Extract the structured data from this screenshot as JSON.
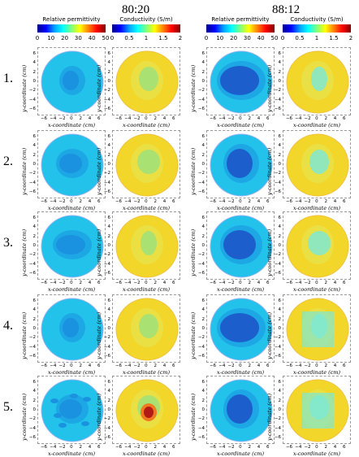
{
  "groups": [
    {
      "title": "80:20"
    },
    {
      "title": "88:12"
    }
  ],
  "colorbars": {
    "permittivity": {
      "label": "Relative permittivity",
      "ticks": [
        "0",
        "10",
        "20",
        "30",
        "40",
        "50"
      ]
    },
    "conductivity": {
      "label": "Conductivity (S/m)",
      "ticks": [
        "0",
        "0.5",
        "1",
        "1.5",
        "2"
      ]
    }
  },
  "rows": [
    "1.",
    "2.",
    "3.",
    "4.",
    "5."
  ],
  "axes": {
    "ylabel": "y-coordinate (cm)",
    "xlabel": "x-coordinate (cm)",
    "yticks": [
      "6",
      "4",
      "2",
      "0",
      "−2",
      "−4",
      "−6"
    ],
    "xticks": [
      "−6",
      "−4",
      "−2",
      "0",
      "2",
      "4",
      "6"
    ]
  },
  "colors": {
    "bg_perm": "#22c2ea",
    "bg_cond": "#f2d62a",
    "inner_perm": "#1a92e0",
    "inner_perm_dark": "#1c5fcc",
    "inner_cond": "#9ee07a",
    "inner_cond_light": "#7fe8d0",
    "hot": "#b21a14"
  }
}
